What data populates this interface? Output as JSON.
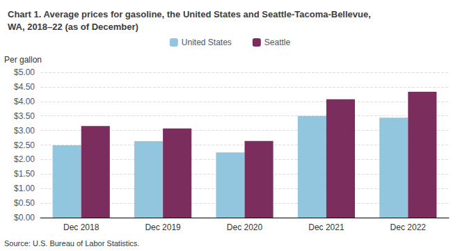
{
  "chart_data": {
    "type": "bar",
    "title": "Chart 1. Average prices for gasoline, the United States and Seattle-Tacoma-Bellevue,\nWA, 2018–22 (as of December)",
    "y_label": "Per gallon",
    "source": "Source: U.S. Bureau of Labor Statistics.",
    "categories": [
      "Dec 2018",
      "Dec 2019",
      "Dec 2020",
      "Dec 2021",
      "Dec 2022"
    ],
    "series": [
      {
        "name": "United States",
        "color": "#92C5DE",
        "values": [
          2.49,
          2.63,
          2.24,
          3.5,
          3.44
        ]
      },
      {
        "name": "Seattle",
        "color": "#7B2D5E",
        "values": [
          3.15,
          3.07,
          2.64,
          4.07,
          4.33
        ]
      }
    ],
    "ylim": [
      0,
      5.0
    ],
    "yticks": [
      {
        "value": 0.0,
        "label": "$0.00"
      },
      {
        "value": 0.5,
        "label": "$0.50"
      },
      {
        "value": 1.0,
        "label": "$1.00"
      },
      {
        "value": 1.5,
        "label": "$1.50"
      },
      {
        "value": 2.0,
        "label": "$2.00"
      },
      {
        "value": 2.5,
        "label": "$2.50"
      },
      {
        "value": 3.0,
        "label": "$3.00"
      },
      {
        "value": 3.5,
        "label": "$3.50"
      },
      {
        "value": 4.0,
        "label": "$4.00"
      },
      {
        "value": 4.5,
        "label": "$4.50"
      },
      {
        "value": 5.0,
        "label": "$5.00"
      }
    ],
    "grid": true,
    "legend": "top"
  }
}
